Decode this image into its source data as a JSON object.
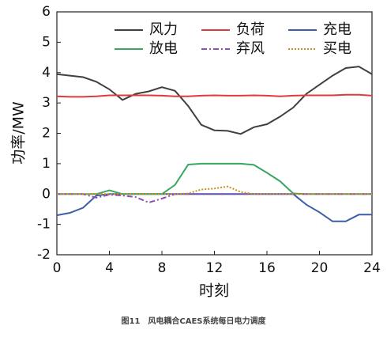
{
  "chart_data": {
    "type": "line",
    "x": [
      0,
      1,
      2,
      3,
      4,
      5,
      6,
      7,
      8,
      9,
      10,
      11,
      12,
      13,
      14,
      15,
      16,
      17,
      18,
      19,
      20,
      21,
      22,
      23,
      24
    ],
    "series": [
      {
        "name": "风力",
        "color": "#404040",
        "dash": "solid",
        "values": [
          3.95,
          3.9,
          3.85,
          3.7,
          3.45,
          3.1,
          3.3,
          3.38,
          3.52,
          3.4,
          2.9,
          2.28,
          2.1,
          2.08,
          1.98,
          2.2,
          2.3,
          2.55,
          2.85,
          3.3,
          3.6,
          3.9,
          4.15,
          4.2,
          3.95
        ]
      },
      {
        "name": "负荷",
        "color": "#e0393e",
        "dash": "solid",
        "values": [
          3.22,
          3.2,
          3.2,
          3.22,
          3.25,
          3.25,
          3.25,
          3.25,
          3.24,
          3.22,
          3.22,
          3.24,
          3.25,
          3.24,
          3.24,
          3.25,
          3.24,
          3.22,
          3.24,
          3.25,
          3.25,
          3.25,
          3.27,
          3.27,
          3.24
        ]
      },
      {
        "name": "充电",
        "color": "#3a5fa8",
        "dash": "solid",
        "values": [
          -0.7,
          -0.62,
          -0.45,
          -0.05,
          0,
          0,
          0,
          0,
          0,
          0,
          0,
          0,
          0,
          0,
          0,
          0,
          0,
          0,
          0,
          -0.35,
          -0.6,
          -0.9,
          -0.9,
          -0.68,
          -0.68
        ]
      },
      {
        "name": "放电",
        "color": "#3aa760",
        "dash": "solid",
        "values": [
          0,
          0,
          0,
          0,
          0.12,
          0,
          0,
          0,
          0,
          0.3,
          0.97,
          1.0,
          1.0,
          1.0,
          1.0,
          0.96,
          0.7,
          0.42,
          0.02,
          0,
          0,
          0,
          0,
          0,
          0
        ]
      },
      {
        "name": "弃风",
        "color": "#8a4fb8",
        "dash": "dashdot",
        "values": [
          0,
          0,
          0,
          -0.12,
          -0.02,
          -0.05,
          -0.1,
          -0.28,
          -0.15,
          0,
          0,
          0,
          0,
          0,
          0,
          0,
          0,
          0,
          0,
          0,
          0,
          0,
          0,
          0,
          0
        ]
      },
      {
        "name": "买电",
        "color": "#c8901c",
        "dash": "dotted",
        "values": [
          0,
          0,
          0,
          0,
          0,
          0,
          0,
          0,
          0,
          0,
          0.02,
          0.15,
          0.18,
          0.25,
          0.07,
          0,
          0,
          0,
          0,
          0,
          0,
          0,
          0,
          0,
          0
        ]
      }
    ],
    "xlim": [
      0,
      24
    ],
    "xticks": [
      0,
      4,
      8,
      12,
      16,
      20,
      24
    ],
    "ylim": [
      -2,
      6
    ],
    "yticks": [
      -2,
      -1,
      0,
      1,
      2,
      3,
      4,
      5,
      6
    ],
    "xlabel": "时刻",
    "ylabel": "功率/MW",
    "caption": "图11　风电耦合CAES系统每日电力调度"
  }
}
